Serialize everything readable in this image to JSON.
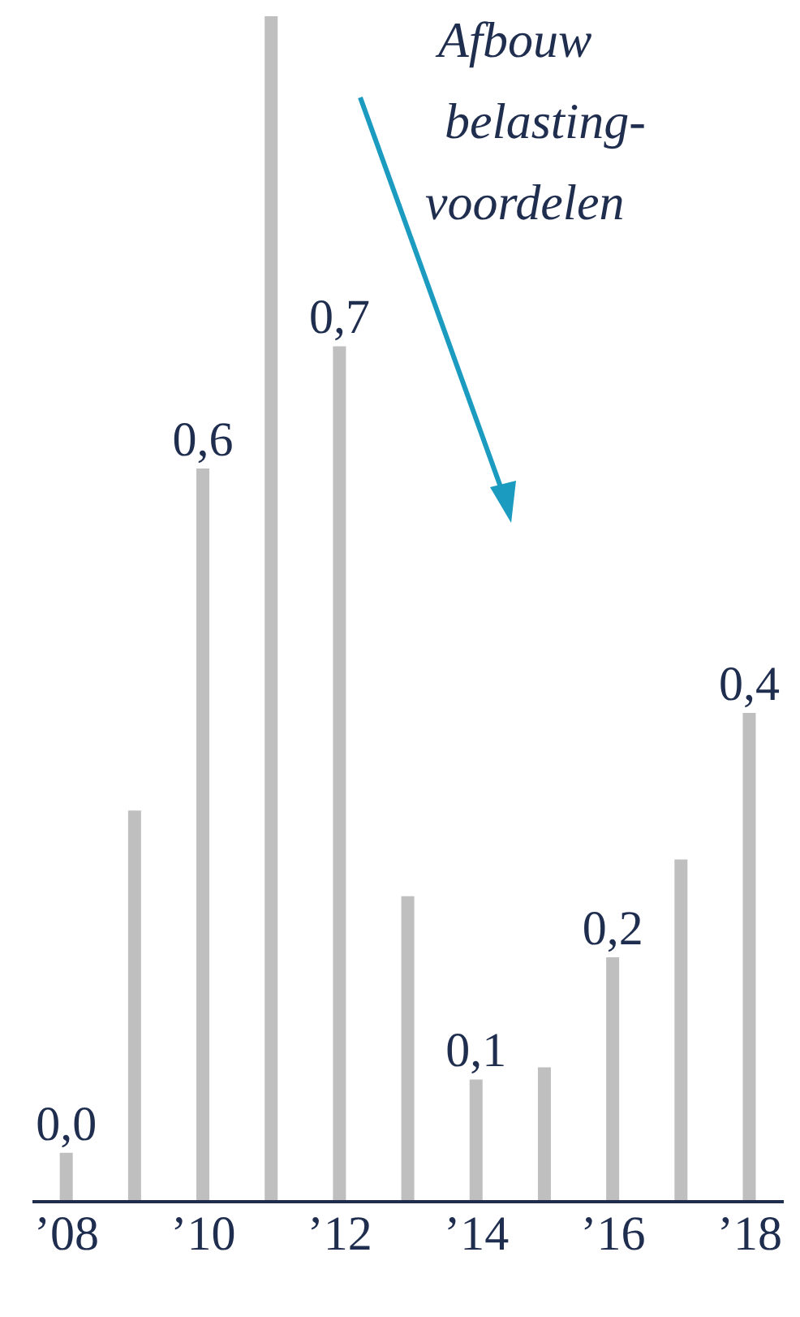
{
  "chart_data": {
    "type": "bar",
    "categories": [
      "’08",
      null,
      "’10",
      null,
      "’12",
      null,
      "’14",
      null,
      "’16",
      null,
      "’18"
    ],
    "values": [
      0.04,
      0.32,
      0.6,
      0.97,
      0.7,
      0.25,
      0.1,
      0.11,
      0.2,
      0.28,
      0.4
    ],
    "value_labels": [
      "0,0",
      null,
      "0,6",
      null,
      "0,7",
      null,
      "0,1",
      null,
      "0,2",
      null,
      "0,4"
    ],
    "color": "#bfbfbf",
    "annotations": [
      "Afbouw\nbelasting-\nvoordelen"
    ],
    "grid": false,
    "legend": false
  }
}
